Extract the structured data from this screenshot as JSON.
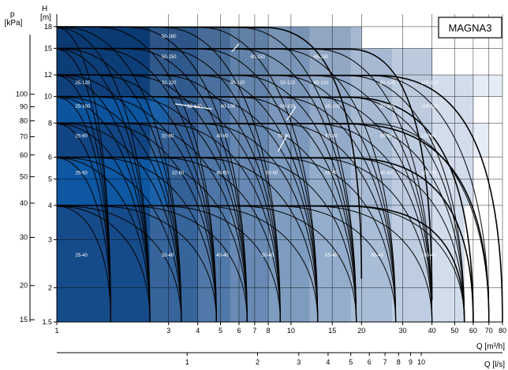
{
  "chart_data": {
    "type": "area",
    "title": "MAGNA3",
    "xlabel": "Q [m³/h]",
    "x2label": "Q [l/s]",
    "ylabel_left": "p\n[kPa]",
    "ylabel_right": "H\n[m]",
    "x_scale": "log",
    "y_scale": "log",
    "xlim": [
      1,
      80
    ],
    "ylim": [
      1.5,
      20
    ],
    "grid": true,
    "x_ticks": [
      1,
      3,
      4,
      5,
      6,
      7,
      8,
      10,
      15,
      20,
      30,
      40,
      50,
      60,
      70,
      80
    ],
    "x2_ticks": [
      1,
      2,
      3,
      4,
      5,
      6,
      7,
      8,
      9,
      10
    ],
    "h_ticks": [
      1.5,
      2,
      3,
      4,
      5,
      6,
      8,
      10,
      12,
      15,
      18
    ],
    "p_ticks": [
      15,
      20,
      30,
      40,
      50,
      60,
      70,
      80,
      90,
      100
    ],
    "pressure_levels": [
      {
        "h": 18.0,
        "qmax": 13.0,
        "right": 20.0,
        "bot": 13.0
      },
      {
        "h": 15.0,
        "qmax": 30.0,
        "right": 40.0,
        "bot": 18.0
      },
      {
        "h": 12.0,
        "qmax": 40.0,
        "right": 80.0,
        "bot": 30.0
      },
      {
        "h": 10.0,
        "qmax": 30.0,
        "right": 60.0,
        "bot": 22.0
      },
      {
        "h": 8.0,
        "qmax": 30.0,
        "right": 70.0,
        "bot": 25.0
      },
      {
        "h": 6.0,
        "qmax": 30.0,
        "right": 60.0,
        "bot": 22.0
      },
      {
        "h": 4.0,
        "qmax": 30.0,
        "right": 55.0,
        "bot": 20.0
      }
    ],
    "zones": [
      {
        "label": "25-40",
        "q": 1.2,
        "h": 2.6
      },
      {
        "label": "32-40",
        "q": 2.8,
        "h": 2.6
      },
      {
        "label": "40-40",
        "q": 4.8,
        "h": 2.6
      },
      {
        "label": "50-40",
        "q": 7.5,
        "h": 2.6
      },
      {
        "label": "65-40",
        "q": 14.0,
        "h": 2.6
      },
      {
        "label": "80-40",
        "q": 22.0,
        "h": 2.6
      },
      {
        "label": "100-40",
        "q": 36.0,
        "h": 2.6
      },
      {
        "label": "25-60",
        "q": 1.2,
        "h": 5.2
      },
      {
        "label": "32-60",
        "q": 3.1,
        "h": 5.2
      },
      {
        "label": "40-60",
        "q": 4.8,
        "h": 5.2
      },
      {
        "label": "50-60",
        "q": 7.8,
        "h": 5.2
      },
      {
        "label": "65-60",
        "q": 14.0,
        "h": 5.2
      },
      {
        "label": "80-60",
        "q": 24.0,
        "h": 5.2
      },
      {
        "label": "100-60",
        "q": 36.0,
        "h": 5.2
      },
      {
        "label": "25-80",
        "q": 1.2,
        "h": 7.1
      },
      {
        "label": "32-80",
        "q": 2.8,
        "h": 7.1
      },
      {
        "label": "40-80",
        "q": 4.8,
        "h": 7.1
      },
      {
        "label": "50-80",
        "q": 8.8,
        "h": 7.1
      },
      {
        "label": "65-80",
        "q": 14.0,
        "h": 7.1
      },
      {
        "label": "80-80",
        "q": 24.0,
        "h": 7.1
      },
      {
        "label": "100-80",
        "q": 36.0,
        "h": 7.1
      },
      {
        "label": "25-100",
        "q": 1.2,
        "h": 9.1
      },
      {
        "label": "32-100",
        "q": 3.6,
        "h": 9.1
      },
      {
        "label": "40-100",
        "q": 5.0,
        "h": 9.1
      },
      {
        "label": "50-100",
        "q": 9.0,
        "h": 9.1
      },
      {
        "label": "65-100",
        "q": 14.0,
        "h": 9.1
      },
      {
        "label": "80-100",
        "q": 24.0,
        "h": 9.1
      },
      {
        "label": "100-100",
        "q": 36.0,
        "h": 9.1
      },
      {
        "label": "25-120",
        "q": 1.2,
        "h": 11.1
      },
      {
        "label": "32-120",
        "q": 2.8,
        "h": 11.1
      },
      {
        "label": "40-120",
        "q": 5.5,
        "h": 11.1
      },
      {
        "label": "50-120",
        "q": 9.0,
        "h": 11.1
      },
      {
        "label": "65-120",
        "q": 12.5,
        "h": 11.1
      },
      {
        "label": "80-120",
        "q": 24.0,
        "h": 11.1
      },
      {
        "label": "100-120",
        "q": 36.0,
        "h": 11.1
      },
      {
        "label": "50-150",
        "q": 2.8,
        "h": 13.8
      },
      {
        "label": "40-150",
        "q": 6.7,
        "h": 13.8
      },
      {
        "label": "65-150",
        "q": 12.5,
        "h": 13.8
      },
      {
        "label": "50-180",
        "q": 2.8,
        "h": 16.4
      },
      {
        "label": "40-180",
        "q": 5.6,
        "h": 18.2
      }
    ],
    "colors": {
      "dark": "#0b3a73",
      "mid": "#2a69b4",
      "accent": "#0a64b8",
      "light": "#e6ecf6",
      "line": "#000000"
    }
  }
}
